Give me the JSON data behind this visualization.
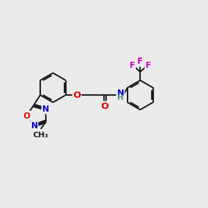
{
  "bg_color": "#ebebeb",
  "bond_color": "#1a1a1a",
  "bond_width": 1.5,
  "atom_colors": {
    "O": "#dd0000",
    "N": "#0000cc",
    "F": "#cc00cc",
    "H": "#4a9090",
    "C": "#1a1a1a"
  },
  "font_size": 9
}
